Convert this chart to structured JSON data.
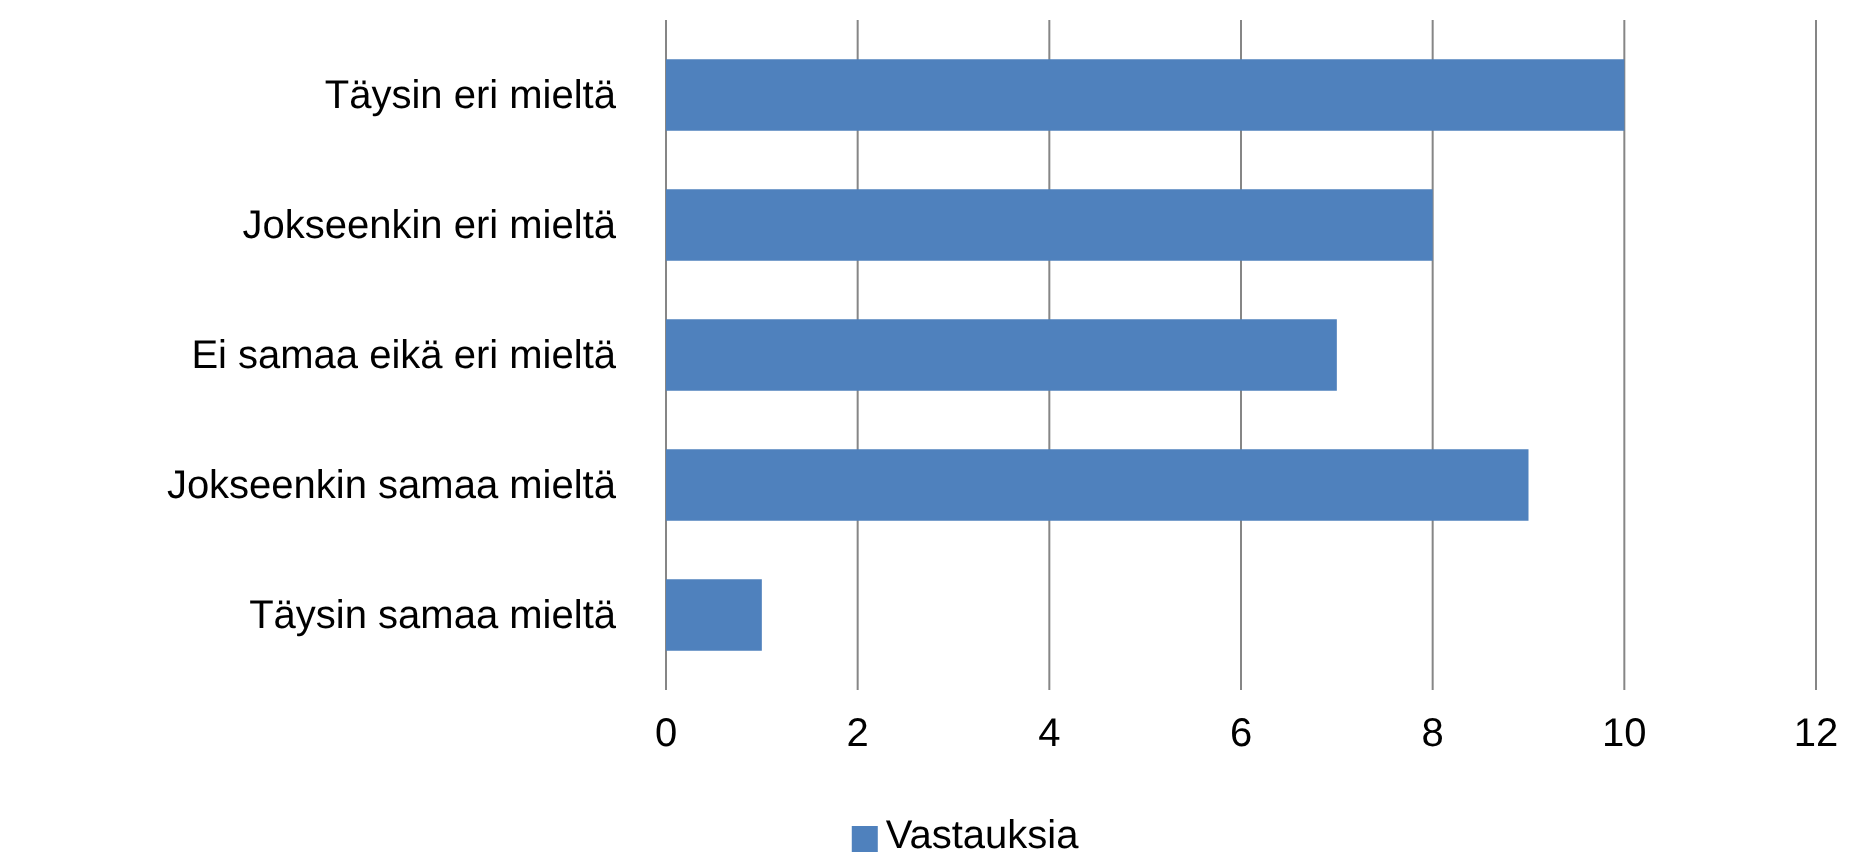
{
  "chart_data": {
    "type": "bar",
    "orientation": "horizontal",
    "categories": [
      "Täysin eri mieltä",
      "Jokseenkin eri mieltä",
      "Ei samaa eikä eri mieltä",
      "Jokseenkin samaa mieltä",
      "Täysin samaa mieltä"
    ],
    "series": [
      {
        "name": "Vastauksia",
        "color": "#4f81bd",
        "values": [
          10,
          8,
          7,
          9,
          1
        ]
      }
    ],
    "xlim": [
      0,
      12
    ],
    "xticks": [
      0,
      2,
      4,
      6,
      8,
      10,
      12
    ],
    "grid": "x",
    "legend": "bottom"
  }
}
